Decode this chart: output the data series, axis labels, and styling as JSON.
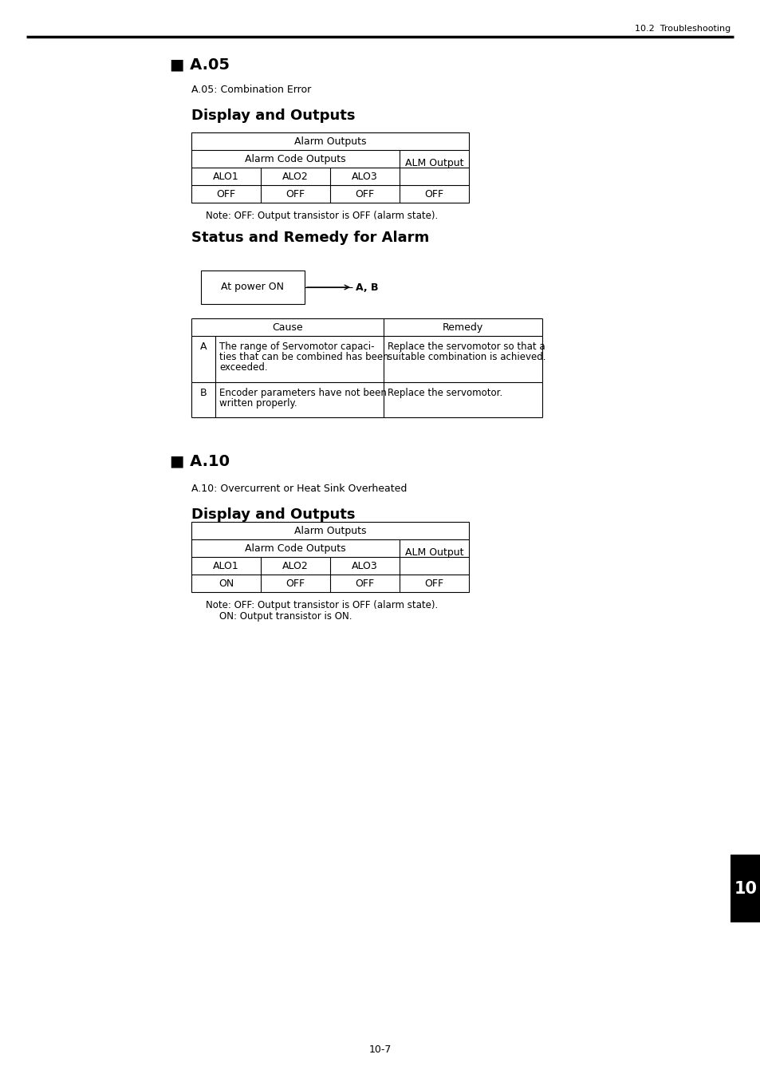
{
  "page_header_right": "10.2  Troubleshooting",
  "section1_title": "■ A.05",
  "section1_subtitle": "A.05: Combination Error",
  "section1_display_title": "Display and Outputs",
  "table1_header1": "Alarm Outputs",
  "table1_header2": "Alarm Code Outputs",
  "table1_header3": "ALM Output",
  "table1_col_headers": [
    "ALO1",
    "ALO2",
    "ALO3"
  ],
  "table1_data": [
    "OFF",
    "OFF",
    "OFF",
    "OFF"
  ],
  "table1_note": "Note: OFF: Output transistor is OFF (alarm state).",
  "section1_remedy_title": "Status and Remedy for Alarm",
  "flowbox_text": "At power ON",
  "flow_arrow_label": "A, B",
  "remedy_col_headers": [
    "Cause",
    "Remedy"
  ],
  "remedy_row_A_label": "A",
  "remedy_row_A_cause_line1": "The range of Servomotor capaci-",
  "remedy_row_A_cause_line2": "ties that can be combined has been",
  "remedy_row_A_cause_line3": "exceeded.",
  "remedy_row_A_remedy_line1": "Replace the servomotor so that a",
  "remedy_row_A_remedy_line2": "suitable combination is achieved.",
  "remedy_row_B_label": "B",
  "remedy_row_B_cause_line1": "Encoder parameters have not been",
  "remedy_row_B_cause_line2": "written properly.",
  "remedy_row_B_remedy": "Replace the servomotor.",
  "section2_title": "■ A.10",
  "section2_subtitle": "A.10: Overcurrent or Heat Sink Overheated",
  "section2_display_title": "Display and Outputs",
  "table2_header1": "Alarm Outputs",
  "table2_header2": "Alarm Code Outputs",
  "table2_header3": "ALM Output",
  "table2_col_headers": [
    "ALO1",
    "ALO2",
    "ALO3"
  ],
  "table2_data": [
    "ON",
    "OFF",
    "OFF",
    "OFF"
  ],
  "table2_note1": "Note: OFF: Output transistor is OFF (alarm state).",
  "table2_note2": "ON: Output transistor is ON.",
  "page_footer": "10-7",
  "tab_label": "10"
}
